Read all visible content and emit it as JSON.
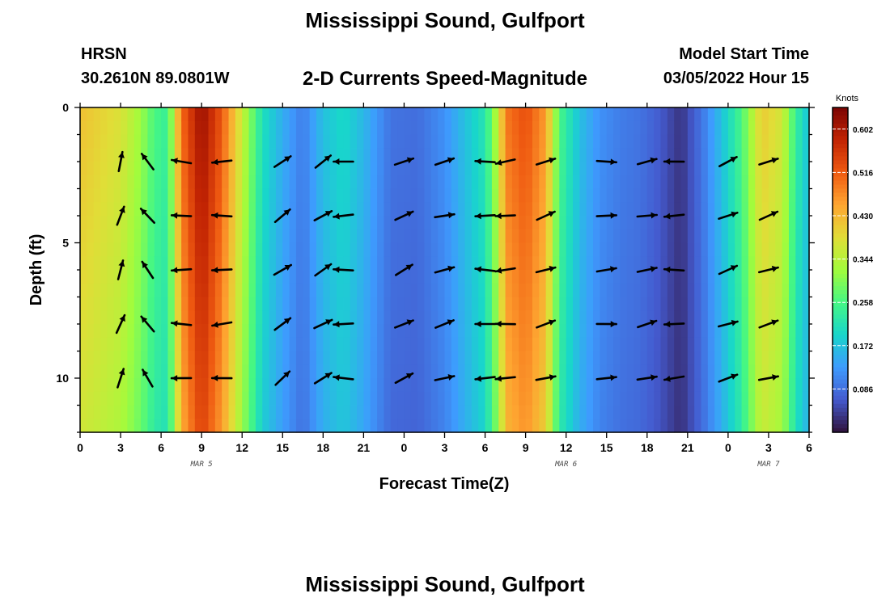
{
  "header": {
    "title": "Mississippi Sound, Gulfport",
    "station": "HRSN",
    "coords": "30.2610N  89.0801W",
    "subtitle": "2-D Currents Speed-Magnitude",
    "model_start_label": "Model Start Time",
    "model_start_value": "03/05/2022 Hour 15"
  },
  "footer": {
    "title": "Mississippi Sound, Gulfport"
  },
  "chart_data": {
    "type": "heatmap",
    "title": "2-D Currents Speed-Magnitude",
    "xlabel": "Forecast Time(Z)",
    "ylabel": "Depth (ft)",
    "x_tick_labels": [
      "0",
      "3",
      "6",
      "9",
      "12",
      "15",
      "18",
      "21",
      "0",
      "3",
      "6",
      "9",
      "12",
      "15",
      "18",
      "21",
      "0",
      "3",
      "6"
    ],
    "x_range_hours": [
      0,
      54
    ],
    "date_labels": [
      {
        "label": "MAR 5",
        "hour": 9
      },
      {
        "label": "MAR 6",
        "hour": 36
      },
      {
        "label": "MAR 7",
        "hour": 51
      }
    ],
    "y_tick_labels": [
      "0",
      "5",
      "10"
    ],
    "y_ticks": [
      0,
      5,
      10
    ],
    "ylim": [
      0,
      12
    ],
    "y_inverted": true,
    "colorbar": {
      "title": "Knots",
      "tick_labels": [
        "0.602",
        "0.516",
        "0.430",
        "0.344",
        "0.258",
        "0.172",
        "0.086"
      ],
      "tick_values": [
        0.602,
        0.516,
        0.43,
        0.344,
        0.258,
        0.172,
        0.086
      ],
      "range": [
        0.0,
        0.645
      ],
      "colormap": "turbo"
    },
    "speed_profile_by_hour": [
      {
        "h": 0,
        "v": 0.42
      },
      {
        "h": 3,
        "v": 0.38
      },
      {
        "h": 4.5,
        "v": 0.32
      },
      {
        "h": 5.5,
        "v": 0.26
      },
      {
        "h": 6.5,
        "v": 0.24
      },
      {
        "h": 7.5,
        "v": 0.5
      },
      {
        "h": 9,
        "v": 0.62
      },
      {
        "h": 10.5,
        "v": 0.52
      },
      {
        "h": 12,
        "v": 0.36
      },
      {
        "h": 13.5,
        "v": 0.21
      },
      {
        "h": 15,
        "v": 0.15
      },
      {
        "h": 16.5,
        "v": 0.1
      },
      {
        "h": 18,
        "v": 0.17
      },
      {
        "h": 19.5,
        "v": 0.2
      },
      {
        "h": 21,
        "v": 0.16
      },
      {
        "h": 23,
        "v": 0.09
      },
      {
        "h": 25,
        "v": 0.085
      },
      {
        "h": 27,
        "v": 0.12
      },
      {
        "h": 28.5,
        "v": 0.17
      },
      {
        "h": 30,
        "v": 0.22
      },
      {
        "h": 31,
        "v": 0.36
      },
      {
        "h": 31.5,
        "v": 0.49
      },
      {
        "h": 33,
        "v": 0.53
      },
      {
        "h": 34.5,
        "v": 0.46
      },
      {
        "h": 35.5,
        "v": 0.26
      },
      {
        "h": 37,
        "v": 0.17
      },
      {
        "h": 38.5,
        "v": 0.12
      },
      {
        "h": 40,
        "v": 0.1
      },
      {
        "h": 41.5,
        "v": 0.09
      },
      {
        "h": 43,
        "v": 0.065
      },
      {
        "h": 44.5,
        "v": 0.03
      },
      {
        "h": 46,
        "v": 0.09
      },
      {
        "h": 47.5,
        "v": 0.17
      },
      {
        "h": 49,
        "v": 0.26
      },
      {
        "h": 50.5,
        "v": 0.41
      },
      {
        "h": 52,
        "v": 0.37
      },
      {
        "h": 53,
        "v": 0.24
      },
      {
        "h": 54,
        "v": 0.17
      }
    ],
    "arrow_depths_ft": [
      2,
      4,
      6,
      8,
      10
    ],
    "arrows": [
      {
        "h": 3,
        "dx": 0.3,
        "dy": -0.95
      },
      {
        "h": 5,
        "dx": -0.6,
        "dy": -0.8
      },
      {
        "h": 7.5,
        "dx": -1,
        "dy": -0.05
      },
      {
        "h": 10.5,
        "dx": -1,
        "dy": 0.05
      },
      {
        "h": 15,
        "dx": 0.8,
        "dy": -0.6
      },
      {
        "h": 18,
        "dx": 0.8,
        "dy": -0.5
      },
      {
        "h": 19.5,
        "dx": -1,
        "dy": 0
      },
      {
        "h": 24,
        "dx": 0.85,
        "dy": -0.4
      },
      {
        "h": 27,
        "dx": 0.9,
        "dy": -0.25
      },
      {
        "h": 30,
        "dx": -1,
        "dy": 0
      },
      {
        "h": 31.5,
        "dx": -1,
        "dy": 0.1
      },
      {
        "h": 34.5,
        "dx": 0.95,
        "dy": -0.3
      },
      {
        "h": 39,
        "dx": 1,
        "dy": -0.05
      },
      {
        "h": 42,
        "dx": 0.95,
        "dy": -0.2
      },
      {
        "h": 44,
        "dx": -1,
        "dy": 0.05
      },
      {
        "h": 48,
        "dx": 0.9,
        "dy": -0.35
      },
      {
        "h": 51,
        "dx": 0.95,
        "dy": -0.3
      }
    ]
  }
}
